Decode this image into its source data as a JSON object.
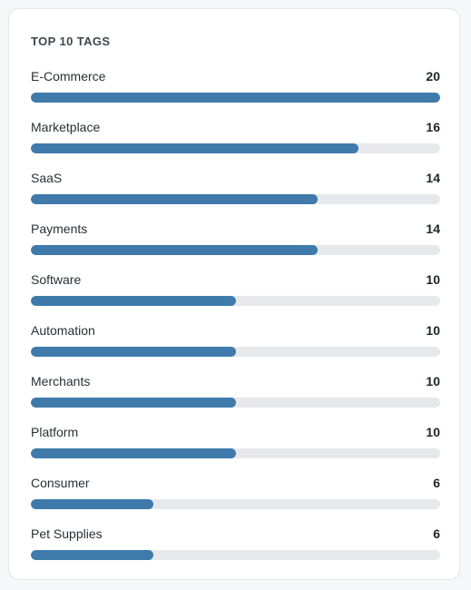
{
  "panel": {
    "title": "TOP 10 TAGS"
  },
  "colors": {
    "bar_fill": "#3f7aab",
    "bar_track": "#e6e8eb"
  },
  "tags": [
    {
      "label": "E-Commerce",
      "count": 20
    },
    {
      "label": "Marketplace",
      "count": 16
    },
    {
      "label": "SaaS",
      "count": 14
    },
    {
      "label": "Payments",
      "count": 14
    },
    {
      "label": "Software",
      "count": 10
    },
    {
      "label": "Automation",
      "count": 10
    },
    {
      "label": "Merchants",
      "count": 10
    },
    {
      "label": "Platform",
      "count": 10
    },
    {
      "label": "Consumer",
      "count": 6
    },
    {
      "label": "Pet Supplies",
      "count": 6
    }
  ]
}
